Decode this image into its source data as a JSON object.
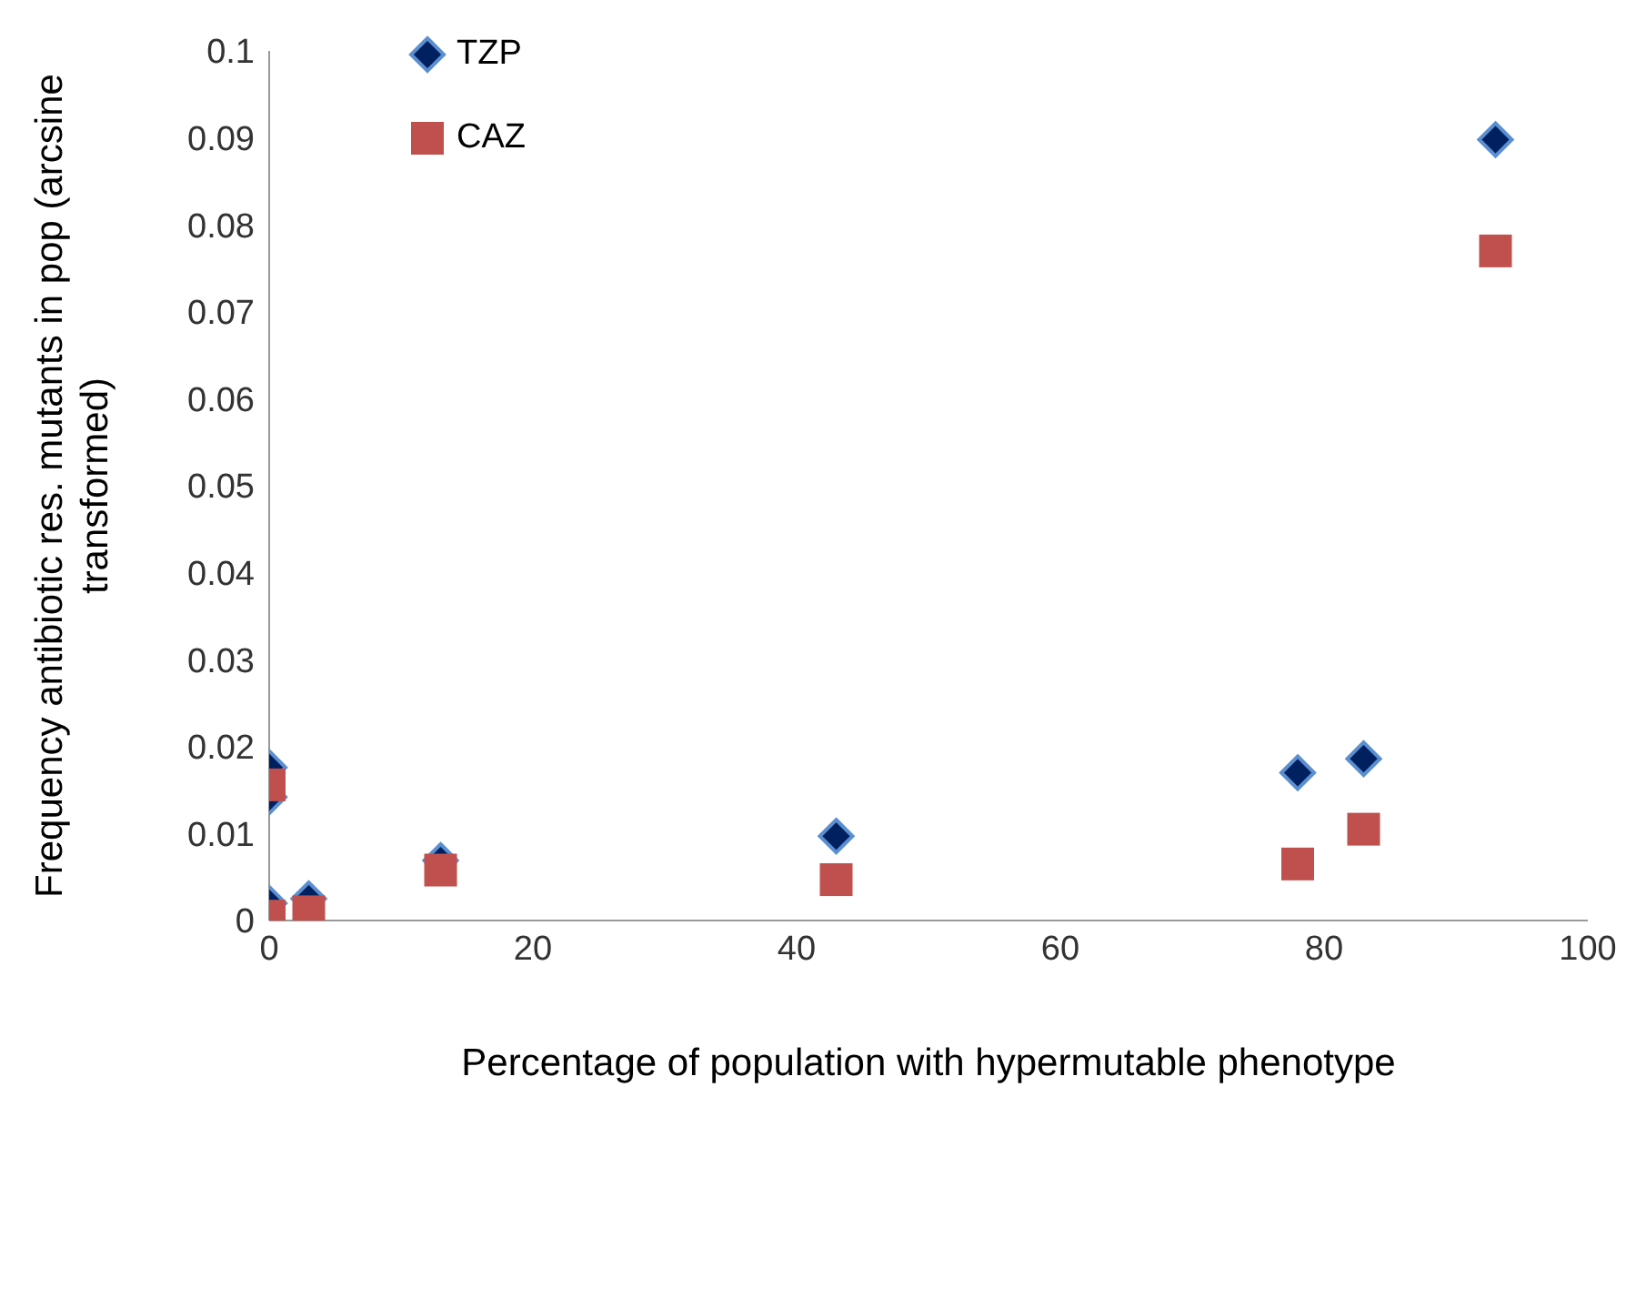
{
  "chart_data": {
    "type": "scatter",
    "xlabel": "Percentage of population with hypermutable phenotype",
    "ylabel": "Frequency antibiotic res. mutants in pop (arcsine transformed)",
    "xlim": [
      0,
      100
    ],
    "xticks": [
      0,
      20,
      40,
      60,
      80,
      100
    ],
    "ylim": [
      0,
      0.1
    ],
    "yticks": [
      0,
      0.01,
      0.02,
      0.03,
      0.04,
      0.05,
      0.06,
      0.07,
      0.08,
      0.09,
      0.1
    ],
    "grid": false,
    "legend": "top left",
    "series": [
      {
        "name": "TZP",
        "color": "#002060",
        "marker": "diamond",
        "x": [
          0,
          0,
          0,
          3,
          13,
          43,
          78,
          83,
          93
        ],
        "values": [
          0.0176,
          0.0142,
          0.002,
          0.0025,
          0.0069,
          0.0097,
          0.017,
          0.0186,
          0.0898
        ]
      },
      {
        "name": "CAZ",
        "color": "#c0504d",
        "marker": "square",
        "x": [
          0,
          0,
          3,
          13,
          43,
          78,
          83,
          93
        ],
        "values": [
          0.0156,
          0.0005,
          0.001,
          0.0058,
          0.0047,
          0.0065,
          0.0105,
          0.077
        ]
      }
    ]
  }
}
